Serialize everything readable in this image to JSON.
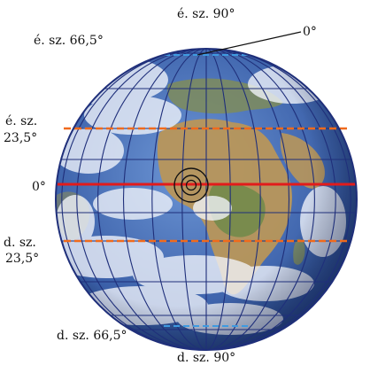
{
  "labels": {
    "north_pole": "é. sz. 90°",
    "prime_meridian": "0°",
    "arctic_circle": "é. sz. 66,5°",
    "tropic_cancer_1": "é. sz.",
    "tropic_cancer_2": "23,5°",
    "equator": "0°",
    "tropic_capricorn_1": "d. sz.",
    "tropic_capricorn_2": "23,5°",
    "antarctic_circle": "d. sz. 66,5°",
    "south_pole": "d. sz. 90°"
  },
  "colors": {
    "ocean_deep": "#2a4d8c",
    "ocean_light": "#5b86c8",
    "cloud": "#f2f5fb",
    "land": "#b8965a",
    "land_green": "#6f8a4a",
    "grid": "#1f2f7a",
    "equator": "#e21b1b",
    "tropic": "#f06a1c",
    "polar": "#3f9ae0",
    "text": "#111111"
  },
  "icons": {
    "center_marker": "concentric-circles-icon"
  }
}
